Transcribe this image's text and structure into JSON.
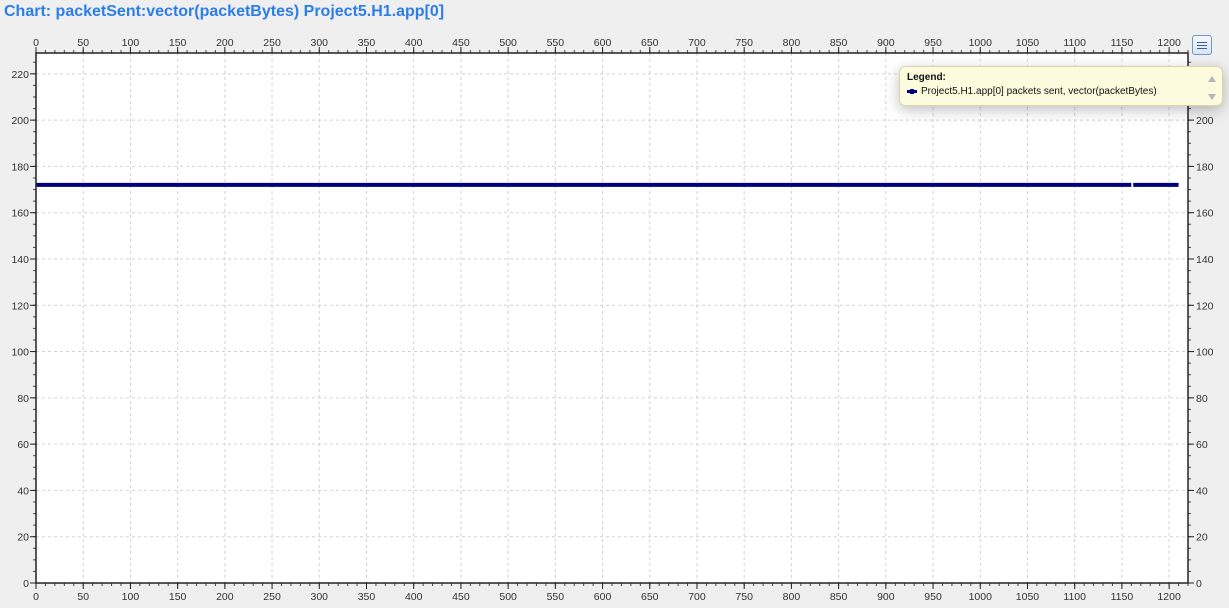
{
  "title": "Chart: packetSent:vector(packetBytes) Project5.H1.app[0]",
  "legend": {
    "heading": "Legend:",
    "entries": [
      {
        "label": "Project5.H1.app[0] packets sent, vector(packetBytes)",
        "color": "#000080"
      }
    ]
  },
  "chart_data": {
    "type": "line",
    "title": "Chart: packetSent:vector(packetBytes) Project5.H1.app[0]",
    "xlim": [
      0,
      1220
    ],
    "ylim": [
      0,
      229
    ],
    "xticks": [
      0,
      50,
      100,
      150,
      200,
      250,
      300,
      350,
      400,
      450,
      500,
      550,
      600,
      650,
      700,
      750,
      800,
      850,
      900,
      950,
      1000,
      1050,
      1100,
      1150,
      1200
    ],
    "yticks": [
      0,
      20,
      40,
      60,
      80,
      100,
      120,
      140,
      160,
      180,
      200,
      220
    ],
    "grid": true,
    "legend_position": "top-right",
    "series": [
      {
        "name": "Project5.H1.app[0] packets sent, vector(packetBytes)",
        "color": "#000080",
        "x": [
          0,
          1160,
          1162,
          1210
        ],
        "y": [
          172,
          172,
          172,
          172
        ]
      }
    ]
  }
}
